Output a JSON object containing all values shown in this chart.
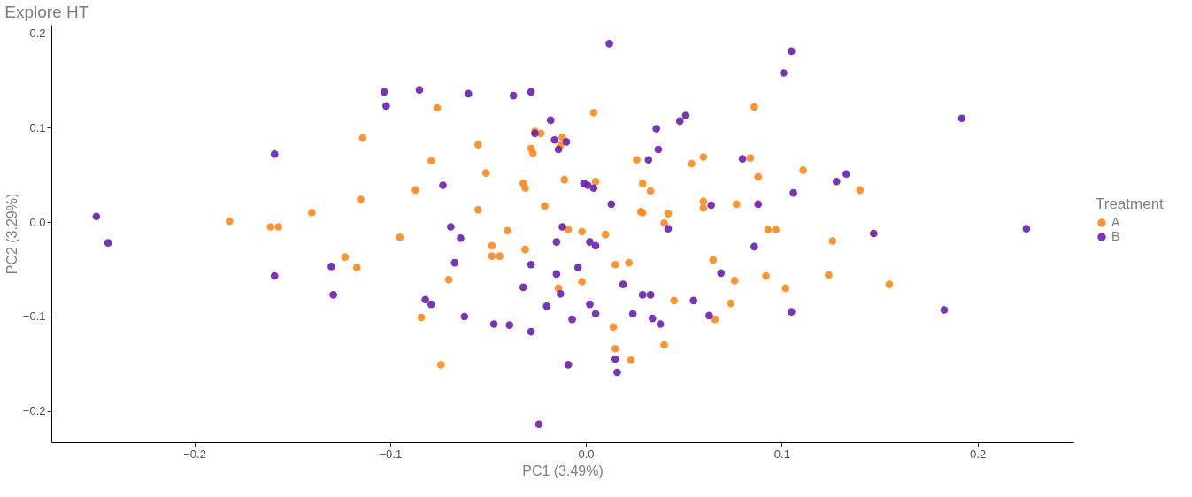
{
  "chart_data": {
    "type": "scatter",
    "title": "Explore HT",
    "xlabel": "PC1 (3.49%)",
    "ylabel": "PC2 (3.29%)",
    "legend_title": "Treatment",
    "legend": "right",
    "grid": false,
    "marker": "circle",
    "xlim": [
      -0.273,
      0.249
    ],
    "ylim": [
      -0.233,
      0.209
    ],
    "xticks": [
      {
        "value": -0.2,
        "label": "−0.2"
      },
      {
        "value": -0.1,
        "label": "−0.1"
      },
      {
        "value": 0,
        "label": "0.0"
      },
      0.1,
      0.2
    ],
    "yticks": [
      {
        "value": -0.2,
        "label": "−0.2"
      },
      {
        "value": -0.1,
        "label": "−0.1"
      },
      {
        "value": 0,
        "label": "0.0"
      },
      0.1,
      0.2
    ],
    "series": [
      {
        "name": "A",
        "color": "#ff8a1c",
        "x": [
          -0.182,
          -0.161,
          -0.157,
          -0.14,
          -0.123,
          -0.117,
          -0.114,
          -0.115,
          -0.095,
          -0.087,
          -0.084,
          -0.079,
          -0.076,
          -0.074,
          -0.07,
          -0.055,
          -0.055,
          -0.051,
          -0.048,
          -0.048,
          -0.044,
          -0.04,
          -0.032,
          -0.031,
          -0.031,
          -0.028,
          -0.027,
          -0.026,
          -0.023,
          -0.021,
          -0.011,
          -0.012,
          -0.014,
          -0.009,
          -0.002,
          -0.002,
          0.004,
          0.005,
          0.01,
          0.015,
          0.015,
          0.014,
          0.022,
          0.023,
          0.026,
          0.028,
          0.029,
          0.029,
          0.033,
          0.04,
          0.04,
          0.042,
          0.045,
          0.054,
          0.06,
          0.06,
          0.06,
          0.065,
          0.076,
          0.077,
          0.084,
          0.086,
          0.088,
          0.093,
          0.092,
          0.097,
          0.102,
          0.111,
          0.124,
          0.126,
          0.14,
          0.155,
          -0.013,
          0.066,
          0.074
        ],
        "values": [
          0.001,
          -0.005,
          -0.005,
          0.01,
          -0.037,
          -0.048,
          0.089,
          0.024,
          -0.016,
          0.034,
          -0.101,
          0.065,
          0.121,
          -0.151,
          -0.061,
          0.082,
          0.013,
          0.052,
          -0.025,
          -0.036,
          -0.036,
          -0.009,
          0.041,
          0.036,
          -0.029,
          0.078,
          0.073,
          0.096,
          0.094,
          0.017,
          0.045,
          0.09,
          -0.07,
          -0.008,
          -0.063,
          -0.01,
          0.116,
          0.043,
          -0.013,
          -0.045,
          -0.134,
          -0.111,
          -0.043,
          -0.146,
          0.066,
          0.011,
          0.01,
          0.041,
          0.033,
          -0.001,
          -0.13,
          0.009,
          -0.083,
          0.062,
          0.069,
          0.022,
          0.015,
          -0.04,
          -0.062,
          0.019,
          0.068,
          0.122,
          0.048,
          -0.008,
          -0.057,
          -0.008,
          -0.07,
          0.055,
          -0.056,
          -0.02,
          0.034,
          -0.066,
          0.081,
          -0.103,
          -0.086
        ]
      },
      {
        "name": "B",
        "color": "#6a1fb0",
        "x": [
          -0.25,
          -0.244,
          -0.159,
          -0.159,
          -0.13,
          -0.129,
          -0.103,
          -0.102,
          -0.085,
          -0.073,
          -0.082,
          -0.079,
          -0.069,
          -0.067,
          -0.064,
          -0.062,
          -0.06,
          -0.047,
          -0.039,
          -0.037,
          -0.032,
          -0.028,
          -0.028,
          -0.028,
          -0.026,
          -0.02,
          -0.018,
          -0.016,
          -0.015,
          -0.015,
          -0.014,
          -0.013,
          -0.012,
          -0.01,
          -0.009,
          -0.007,
          -0.004,
          -0.001,
          0.002,
          0.001,
          0.004,
          0.002,
          0.005,
          0.005,
          0.012,
          0.013,
          0.015,
          0.016,
          0.019,
          0.024,
          0.029,
          0.033,
          0.034,
          0.036,
          0.037,
          0.038,
          0.042,
          0.048,
          0.051,
          0.055,
          0.063,
          0.069,
          0.08,
          0.086,
          0.088,
          0.101,
          0.105,
          0.105,
          0.106,
          0.128,
          0.133,
          0.147,
          0.183,
          0.192,
          0.225,
          -0.024,
          0.032,
          0.064
        ],
        "values": [
          0.006,
          -0.022,
          0.072,
          -0.057,
          -0.047,
          -0.077,
          0.138,
          0.123,
          0.14,
          0.039,
          -0.082,
          -0.087,
          -0.005,
          -0.043,
          -0.017,
          -0.1,
          0.136,
          -0.108,
          -0.109,
          0.134,
          -0.069,
          -0.116,
          0.138,
          -0.045,
          0.094,
          -0.089,
          0.108,
          0.087,
          -0.021,
          -0.055,
          0.077,
          -0.076,
          -0.005,
          0.085,
          -0.151,
          -0.103,
          -0.048,
          0.041,
          -0.087,
          0.039,
          0.036,
          -0.021,
          -0.025,
          -0.097,
          0.189,
          0.019,
          -0.145,
          -0.159,
          -0.066,
          -0.097,
          -0.077,
          -0.077,
          -0.102,
          0.099,
          0.077,
          -0.108,
          -0.007,
          0.107,
          0.113,
          -0.083,
          -0.099,
          -0.054,
          0.067,
          -0.026,
          0.019,
          0.158,
          0.181,
          -0.095,
          0.031,
          0.043,
          0.051,
          -0.012,
          -0.093,
          0.11,
          -0.007,
          -0.214,
          0.066,
          0.018
        ]
      }
    ]
  }
}
